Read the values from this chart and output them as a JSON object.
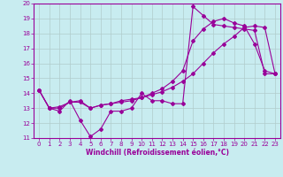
{
  "title": "",
  "xlabel": "Windchill (Refroidissement éolien,°C)",
  "bg_color": "#c8ecf0",
  "line_color": "#990099",
  "grid_color": "#b0cccc",
  "xlim": [
    -0.5,
    23.5
  ],
  "ylim": [
    11,
    20
  ],
  "xticks": [
    0,
    1,
    2,
    3,
    4,
    5,
    6,
    7,
    8,
    9,
    10,
    11,
    12,
    13,
    14,
    15,
    16,
    17,
    18,
    19,
    20,
    21,
    22,
    23
  ],
  "yticks": [
    11,
    12,
    13,
    14,
    15,
    16,
    17,
    18,
    19,
    20
  ],
  "line1_x": [
    0,
    1,
    2,
    3,
    4,
    5,
    6,
    7,
    8,
    9,
    10,
    11,
    12,
    13,
    14,
    15,
    16,
    17,
    18,
    19,
    20,
    21,
    22,
    23
  ],
  "line1_y": [
    14.2,
    13.0,
    12.8,
    13.5,
    12.2,
    11.1,
    11.6,
    12.8,
    12.8,
    13.0,
    14.0,
    13.5,
    13.5,
    13.3,
    13.3,
    19.8,
    19.2,
    18.6,
    18.5,
    18.4,
    18.3,
    18.2,
    15.3,
    15.3
  ],
  "line2_x": [
    0,
    1,
    2,
    3,
    4,
    5,
    6,
    7,
    8,
    9,
    10,
    11,
    12,
    13,
    14,
    15,
    16,
    17,
    18,
    19,
    20,
    21,
    22,
    23
  ],
  "line2_y": [
    14.2,
    13.0,
    13.1,
    13.4,
    13.5,
    13.0,
    13.2,
    13.3,
    13.5,
    13.6,
    13.7,
    13.9,
    14.1,
    14.4,
    14.8,
    15.3,
    16.0,
    16.7,
    17.3,
    17.8,
    18.4,
    18.5,
    18.4,
    15.3
  ],
  "line3_x": [
    0,
    1,
    2,
    3,
    4,
    5,
    6,
    7,
    8,
    9,
    10,
    11,
    12,
    13,
    14,
    15,
    16,
    17,
    18,
    19,
    20,
    21,
    22,
    23
  ],
  "line3_y": [
    14.2,
    13.0,
    13.0,
    13.4,
    13.4,
    13.0,
    13.2,
    13.3,
    13.4,
    13.5,
    13.7,
    14.0,
    14.3,
    14.8,
    15.5,
    17.5,
    18.3,
    18.8,
    19.0,
    18.7,
    18.5,
    17.3,
    15.5,
    15.3
  ]
}
